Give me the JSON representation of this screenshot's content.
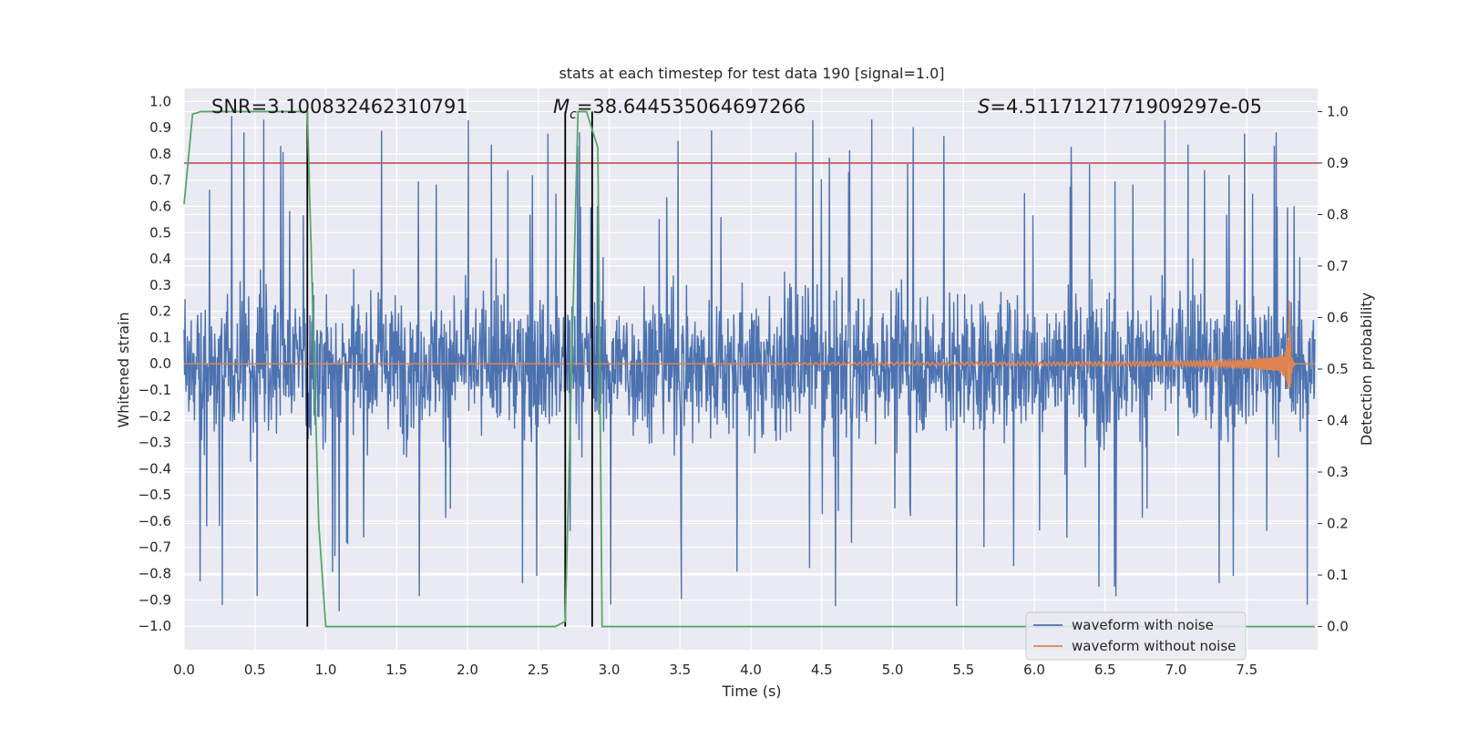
{
  "chart_data": {
    "type": "line",
    "title": "stats at each timestep for test data 190 [signal=1.0]",
    "xlabel": "Time (s)",
    "ylabel_left": "Whitened strain",
    "ylabel_right": "Detection probability",
    "xlim": [
      0.0,
      8.0
    ],
    "ylim_left": [
      -1.09,
      1.05
    ],
    "ylim_right": [
      -0.045,
      1.045
    ],
    "x_ticks": [
      "0.0",
      "0.5",
      "1.0",
      "1.5",
      "2.0",
      "2.5",
      "3.0",
      "3.5",
      "4.0",
      "4.5",
      "5.0",
      "5.5",
      "6.0",
      "6.5",
      "7.0",
      "7.5"
    ],
    "y_ticks_left": [
      "1.0",
      "0.9",
      "0.8",
      "0.7",
      "0.6",
      "0.5",
      "0.4",
      "0.3",
      "0.2",
      "0.1",
      "0.0",
      "−0.1",
      "−0.2",
      "−0.3",
      "−0.4",
      "−0.5",
      "−0.6",
      "−0.7",
      "−0.8",
      "−0.9",
      "−1.0"
    ],
    "y_ticks_right": [
      "1.0",
      "0.9",
      "0.8",
      "0.7",
      "0.6",
      "0.5",
      "0.4",
      "0.3",
      "0.2",
      "0.1",
      "0.0"
    ],
    "annotations": {
      "snr": "SNR=3.100832462310791",
      "mc_symbol": "M",
      "mc_sub": "c",
      "mc_value": "=38.644535064697266",
      "s_symbol": "S",
      "s_value": "=4.5117121771909297e-05"
    },
    "grid": true,
    "legend_position": "lower-right",
    "series": [
      {
        "name": "waveform with noise",
        "axis": "left",
        "color": "#4c72b0",
        "description": "dense whitened noise, roughly ±0.5 with spikes up to ±0.9",
        "typical_amplitude": 0.45,
        "max_amplitude": 0.95
      },
      {
        "name": "waveform without noise",
        "axis": "left",
        "color": "#dd8452",
        "description": "chirp signal growing toward merger near t=7.8 s",
        "merger_time": 7.8,
        "peak_amplitude": 0.31
      },
      {
        "name": "detection probability",
        "axis": "right",
        "color": "#55a868",
        "in_legend": false,
        "x": [
          0.0,
          0.06,
          0.12,
          0.87,
          0.95,
          1.0,
          2.62,
          2.69,
          2.78,
          2.84,
          2.92,
          2.95,
          7.98
        ],
        "y": [
          0.82,
          0.995,
          1.0,
          1.0,
          0.2,
          0.0,
          0.0,
          0.01,
          1.0,
          1.0,
          0.93,
          0.0,
          0.0
        ]
      }
    ],
    "threshold_line": {
      "axis": "right",
      "value": 0.9,
      "color": "#c44e52"
    },
    "event_markers": {
      "color": "#000000",
      "x": [
        0.87,
        2.69,
        2.88
      ],
      "axis_right_range": [
        0.0,
        1.0
      ]
    },
    "colors": {
      "axes_background": "#eaeaf2",
      "grid": "#ffffff",
      "noise": "#4c72b0",
      "clean": "#dd8452",
      "probability": "#55a868",
      "threshold": "#c44e52"
    }
  }
}
